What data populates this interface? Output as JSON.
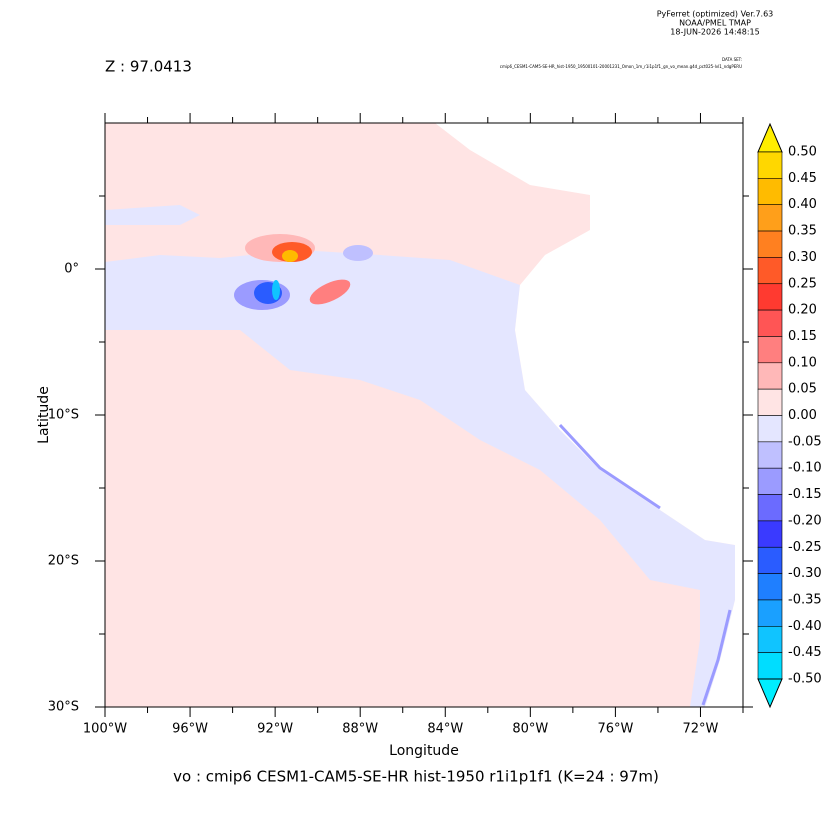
{
  "chart_data": {
    "type": "heatmap",
    "header": [
      "PyFerret (optimized) Ver.7.63",
      "NOAA/PMEL TMAP",
      "18-JUN-2026 14:48:15"
    ],
    "dataset_label": "DATA SET:",
    "dataset": "cmip6_CESM1-CAM5-SE-HR_hist-1950_19500101-20001231_Omon_1m_r1i1p1f1_gn_vo_mean.g4d_pct025-lvl1_ndgPERU",
    "subtitle": "Z : 97.0413",
    "title": "vo : cmip6 CESM1-CAM5-SE-HR hist-1950 r1i1p1f1   (K=24 : 97m)",
    "xlabel": "Longitude",
    "ylabel": "Latitude",
    "xlim": [
      -100,
      -70
    ],
    "ylim": [
      -30,
      10
    ],
    "xticks": [
      {
        "value": -100,
        "label": "100°W"
      },
      {
        "value": -96,
        "label": "96°W"
      },
      {
        "value": -92,
        "label": "92°W"
      },
      {
        "value": -88,
        "label": "88°W"
      },
      {
        "value": -84,
        "label": "84°W"
      },
      {
        "value": -80,
        "label": "80°W"
      },
      {
        "value": -76,
        "label": "76°W"
      },
      {
        "value": -72,
        "label": "72°W"
      }
    ],
    "xminor": [
      -98,
      -94,
      -90,
      -86,
      -82,
      -78,
      -74,
      -70
    ],
    "yticks": [
      {
        "value": 0,
        "label": "0°"
      },
      {
        "value": -10,
        "label": "10°S"
      },
      {
        "value": -20,
        "label": "20°S"
      },
      {
        "value": -30,
        "label": "30°S"
      }
    ],
    "yminor": [
      5,
      -5,
      -15,
      -25
    ],
    "colorbar": {
      "levels": [
        {
          "value": 0.5,
          "label": "0.50"
        },
        {
          "value": 0.45,
          "label": "0.45"
        },
        {
          "value": 0.4,
          "label": "0.40"
        },
        {
          "value": 0.35,
          "label": "0.35"
        },
        {
          "value": 0.3,
          "label": "0.30"
        },
        {
          "value": 0.25,
          "label": "0.25"
        },
        {
          "value": 0.2,
          "label": "0.20"
        },
        {
          "value": 0.15,
          "label": "0.15"
        },
        {
          "value": 0.1,
          "label": "0.10"
        },
        {
          "value": 0.05,
          "label": "0.05"
        },
        {
          "value": 0,
          "label": "0.00"
        },
        {
          "value": -0.05,
          "label": "-0.05"
        },
        {
          "value": -0.1,
          "label": "-0.10"
        },
        {
          "value": -0.15,
          "label": "-0.15"
        },
        {
          "value": -0.2,
          "label": "-0.20"
        },
        {
          "value": -0.25,
          "label": "-0.25"
        },
        {
          "value": -0.3,
          "label": "-0.30"
        },
        {
          "value": -0.35,
          "label": "-0.35"
        },
        {
          "value": -0.4,
          "label": "-0.40"
        },
        {
          "value": -0.45,
          "label": "-0.45"
        },
        {
          "value": -0.5,
          "label": "-0.50"
        }
      ],
      "colors": [
        "#ffee00",
        "#ffd700",
        "#ffbb00",
        "#ff9f1a",
        "#ff8020",
        "#ff5a28",
        "#ff3a30",
        "#ff5555",
        "#ff7f7f",
        "#ffb8b8",
        "#ffe4e4",
        "#e4e6ff",
        "#bfc0ff",
        "#9b9bff",
        "#6b6bff",
        "#3a3aff",
        "#2a5cff",
        "#1f7fff",
        "#1aa0ff",
        "#10c4ff",
        "#00ddff",
        "#00eeff"
      ]
    }
  }
}
